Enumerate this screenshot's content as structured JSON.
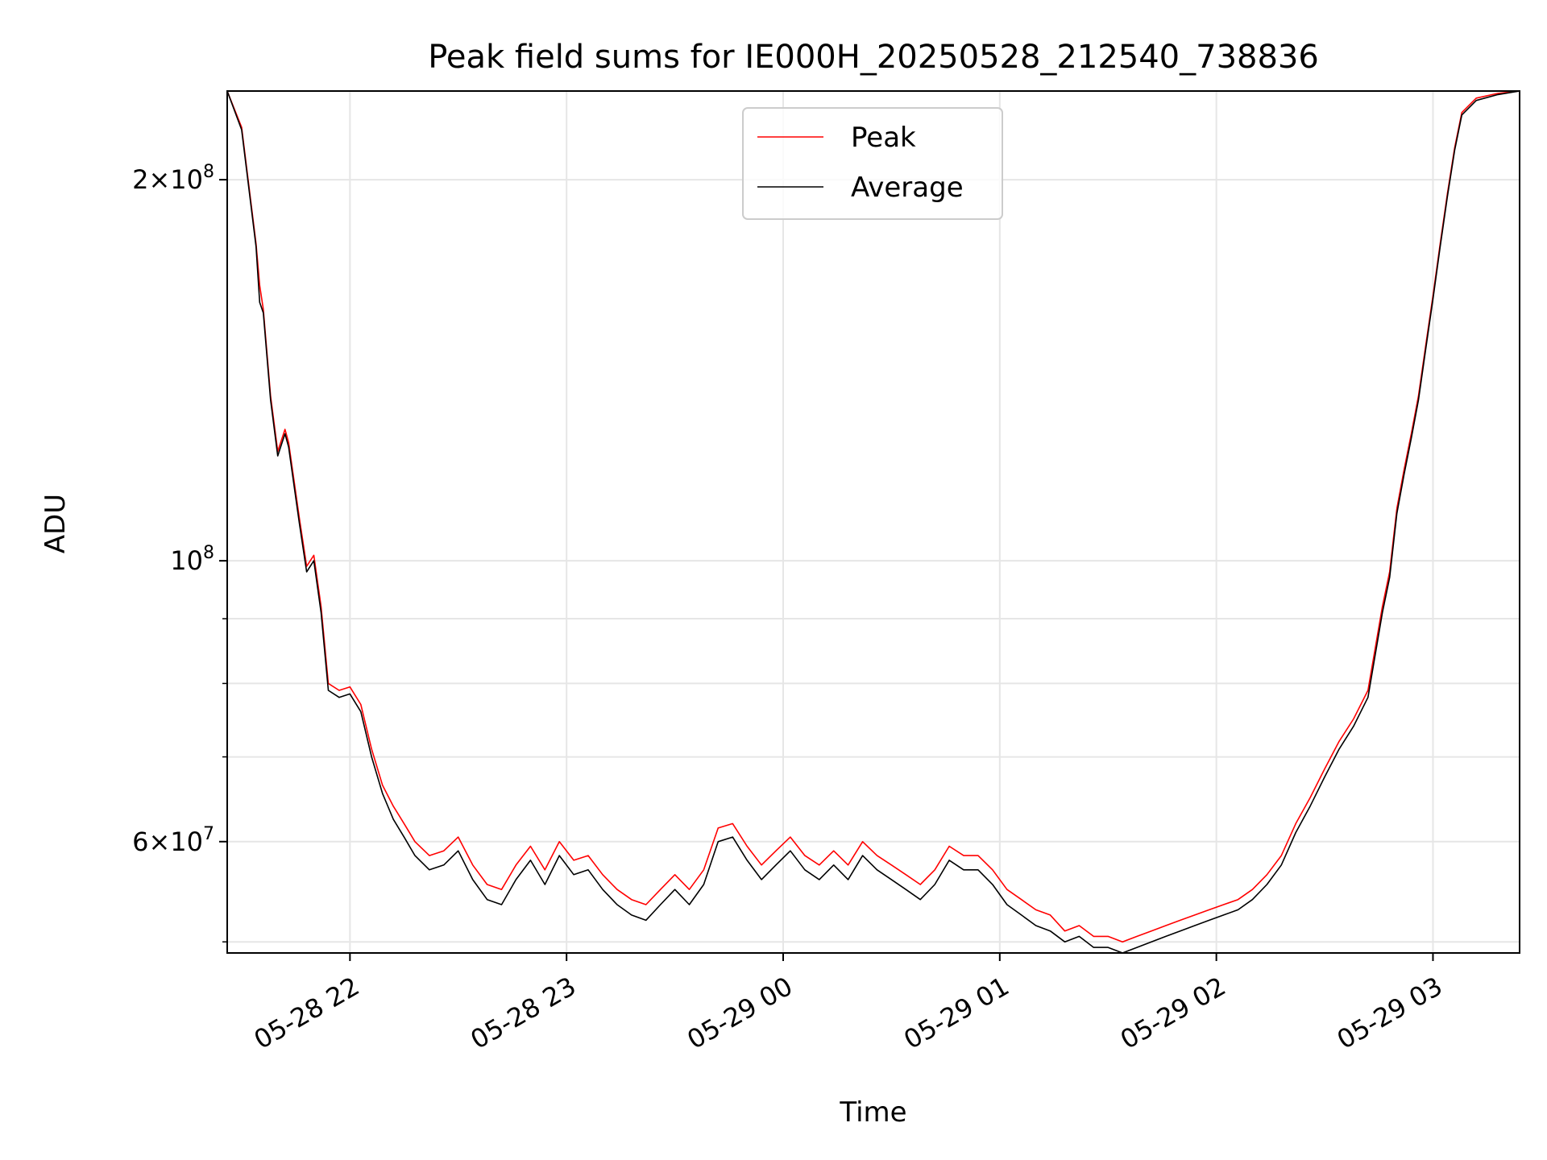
{
  "chart_data": {
    "type": "line",
    "title": "Peak field sums for IE000H_20250528_212540_738836",
    "xlabel": "Time",
    "ylabel": "ADU",
    "y_scale": "log",
    "grid": true,
    "legend_position": "top-center",
    "xlim": [
      "2025-05-28 21:26",
      "2025-05-29 03:24"
    ],
    "ylim": [
      49000000,
      235000000
    ],
    "x_ticks": [
      {
        "t": "2025-05-28 22:00",
        "label": "05-28 22"
      },
      {
        "t": "2025-05-28 23:00",
        "label": "05-28 23"
      },
      {
        "t": "2025-05-29 00:00",
        "label": "05-29 00"
      },
      {
        "t": "2025-05-29 01:00",
        "label": "05-29 01"
      },
      {
        "t": "2025-05-29 02:00",
        "label": "05-29 02"
      },
      {
        "t": "2025-05-29 03:00",
        "label": "05-29 03"
      }
    ],
    "y_ticks": [
      {
        "value": 60000000,
        "base": "6",
        "exp": "7"
      },
      {
        "value": 100000000,
        "base": "",
        "exp": "8"
      },
      {
        "value": 200000000,
        "base": "2",
        "exp": "8"
      }
    ],
    "y_minor_ticks": [
      50000000,
      70000000,
      80000000,
      90000000
    ],
    "series": [
      {
        "name": "Peak",
        "color": "#ff0000",
        "points": [
          [
            "2025-05-28 21:26",
            235000000
          ],
          [
            "2025-05-28 21:30",
            220000000
          ],
          [
            "2025-05-28 21:34",
            178000000
          ],
          [
            "2025-05-28 21:35",
            165000000
          ],
          [
            "2025-05-28 21:36",
            158000000
          ],
          [
            "2025-05-28 21:38",
            135000000
          ],
          [
            "2025-05-28 21:40",
            122000000
          ],
          [
            "2025-05-28 21:42",
            127000000
          ],
          [
            "2025-05-28 21:43",
            124000000
          ],
          [
            "2025-05-28 21:46",
            108000000
          ],
          [
            "2025-05-28 21:48",
            99000000
          ],
          [
            "2025-05-28 21:50",
            101000000
          ],
          [
            "2025-05-28 21:52",
            92000000
          ],
          [
            "2025-05-28 21:54",
            80000000
          ],
          [
            "2025-05-28 21:57",
            79000000
          ],
          [
            "2025-05-28 22:00",
            79500000
          ],
          [
            "2025-05-28 22:03",
            77000000
          ],
          [
            "2025-05-28 22:06",
            71000000
          ],
          [
            "2025-05-28 22:09",
            66500000
          ],
          [
            "2025-05-28 22:12",
            64000000
          ],
          [
            "2025-05-28 22:15",
            62000000
          ],
          [
            "2025-05-28 22:18",
            60000000
          ],
          [
            "2025-05-28 22:22",
            58500000
          ],
          [
            "2025-05-28 22:26",
            59000000
          ],
          [
            "2025-05-28 22:30",
            60500000
          ],
          [
            "2025-05-28 22:34",
            57500000
          ],
          [
            "2025-05-28 22:38",
            55500000
          ],
          [
            "2025-05-28 22:42",
            55000000
          ],
          [
            "2025-05-28 22:46",
            57500000
          ],
          [
            "2025-05-28 22:50",
            59500000
          ],
          [
            "2025-05-28 22:54",
            57000000
          ],
          [
            "2025-05-28 22:58",
            60000000
          ],
          [
            "2025-05-28 23:02",
            58000000
          ],
          [
            "2025-05-28 23:06",
            58500000
          ],
          [
            "2025-05-28 23:10",
            56500000
          ],
          [
            "2025-05-28 23:14",
            55000000
          ],
          [
            "2025-05-28 23:18",
            54000000
          ],
          [
            "2025-05-28 23:22",
            53500000
          ],
          [
            "2025-05-28 23:26",
            55000000
          ],
          [
            "2025-05-28 23:30",
            56500000
          ],
          [
            "2025-05-28 23:34",
            55000000
          ],
          [
            "2025-05-28 23:38",
            57000000
          ],
          [
            "2025-05-28 23:42",
            61500000
          ],
          [
            "2025-05-28 23:46",
            62000000
          ],
          [
            "2025-05-28 23:50",
            59500000
          ],
          [
            "2025-05-28 23:54",
            57500000
          ],
          [
            "2025-05-28 23:58",
            59000000
          ],
          [
            "2025-05-29 00:02",
            60500000
          ],
          [
            "2025-05-29 00:06",
            58500000
          ],
          [
            "2025-05-29 00:10",
            57500000
          ],
          [
            "2025-05-29 00:14",
            59000000
          ],
          [
            "2025-05-29 00:18",
            57500000
          ],
          [
            "2025-05-29 00:22",
            60000000
          ],
          [
            "2025-05-29 00:26",
            58500000
          ],
          [
            "2025-05-29 00:30",
            57500000
          ],
          [
            "2025-05-29 00:34",
            56500000
          ],
          [
            "2025-05-29 00:38",
            55500000
          ],
          [
            "2025-05-29 00:42",
            57000000
          ],
          [
            "2025-05-29 00:46",
            59500000
          ],
          [
            "2025-05-29 00:50",
            58500000
          ],
          [
            "2025-05-29 00:54",
            58500000
          ],
          [
            "2025-05-29 00:58",
            57000000
          ],
          [
            "2025-05-29 01:02",
            55000000
          ],
          [
            "2025-05-29 01:06",
            54000000
          ],
          [
            "2025-05-29 01:10",
            53000000
          ],
          [
            "2025-05-29 01:14",
            52500000
          ],
          [
            "2025-05-29 01:18",
            51000000
          ],
          [
            "2025-05-29 01:22",
            51500000
          ],
          [
            "2025-05-29 01:26",
            50500000
          ],
          [
            "2025-05-29 01:30",
            50500000
          ],
          [
            "2025-05-29 01:34",
            50000000
          ],
          [
            "2025-05-29 01:38",
            50500000
          ],
          [
            "2025-05-29 01:42",
            51000000
          ],
          [
            "2025-05-29 01:46",
            51500000
          ],
          [
            "2025-05-29 01:50",
            52000000
          ],
          [
            "2025-05-29 01:54",
            52500000
          ],
          [
            "2025-05-29 01:58",
            53000000
          ],
          [
            "2025-05-29 02:02",
            53500000
          ],
          [
            "2025-05-29 02:06",
            54000000
          ],
          [
            "2025-05-29 02:10",
            55000000
          ],
          [
            "2025-05-29 02:14",
            56500000
          ],
          [
            "2025-05-29 02:18",
            58500000
          ],
          [
            "2025-05-29 02:22",
            62000000
          ],
          [
            "2025-05-29 02:26",
            65000000
          ],
          [
            "2025-05-29 02:30",
            68500000
          ],
          [
            "2025-05-29 02:34",
            72000000
          ],
          [
            "2025-05-29 02:38",
            75000000
          ],
          [
            "2025-05-29 02:42",
            79000000
          ],
          [
            "2025-05-29 02:46",
            92000000
          ],
          [
            "2025-05-29 02:48",
            98000000
          ],
          [
            "2025-05-29 02:50",
            110000000
          ],
          [
            "2025-05-29 02:52",
            118000000
          ],
          [
            "2025-05-29 02:54",
            126000000
          ],
          [
            "2025-05-29 02:56",
            135000000
          ],
          [
            "2025-05-29 02:58",
            148000000
          ],
          [
            "2025-05-29 03:00",
            162000000
          ],
          [
            "2025-05-29 03:02",
            178000000
          ],
          [
            "2025-05-29 03:04",
            195000000
          ],
          [
            "2025-05-29 03:06",
            212000000
          ],
          [
            "2025-05-29 03:08",
            226000000
          ],
          [
            "2025-05-29 03:12",
            232000000
          ],
          [
            "2025-05-29 03:18",
            234000000
          ],
          [
            "2025-05-29 03:24",
            235000000
          ]
        ]
      },
      {
        "name": "Average",
        "color": "#000000",
        "points": [
          [
            "2025-05-28 21:26",
            235000000
          ],
          [
            "2025-05-28 21:30",
            219000000
          ],
          [
            "2025-05-28 21:34",
            177000000
          ],
          [
            "2025-05-28 21:35",
            160000000
          ],
          [
            "2025-05-28 21:36",
            157000000
          ],
          [
            "2025-05-28 21:38",
            134000000
          ],
          [
            "2025-05-28 21:40",
            121000000
          ],
          [
            "2025-05-28 21:42",
            126000000
          ],
          [
            "2025-05-28 21:43",
            123000000
          ],
          [
            "2025-05-28 21:46",
            107000000
          ],
          [
            "2025-05-28 21:48",
            98000000
          ],
          [
            "2025-05-28 21:50",
            100000000
          ],
          [
            "2025-05-28 21:52",
            91000000
          ],
          [
            "2025-05-28 21:54",
            79000000
          ],
          [
            "2025-05-28 21:57",
            78000000
          ],
          [
            "2025-05-28 22:00",
            78500000
          ],
          [
            "2025-05-28 22:03",
            76000000
          ],
          [
            "2025-05-28 22:06",
            70000000
          ],
          [
            "2025-05-28 22:09",
            65500000
          ],
          [
            "2025-05-28 22:12",
            62500000
          ],
          [
            "2025-05-28 22:15",
            60500000
          ],
          [
            "2025-05-28 22:18",
            58500000
          ],
          [
            "2025-05-28 22:22",
            57000000
          ],
          [
            "2025-05-28 22:26",
            57500000
          ],
          [
            "2025-05-28 22:30",
            59000000
          ],
          [
            "2025-05-28 22:34",
            56000000
          ],
          [
            "2025-05-28 22:38",
            54000000
          ],
          [
            "2025-05-28 22:42",
            53500000
          ],
          [
            "2025-05-28 22:46",
            56000000
          ],
          [
            "2025-05-28 22:50",
            58000000
          ],
          [
            "2025-05-28 22:54",
            55500000
          ],
          [
            "2025-05-28 22:58",
            58500000
          ],
          [
            "2025-05-28 23:02",
            56500000
          ],
          [
            "2025-05-28 23:06",
            57000000
          ],
          [
            "2025-05-28 23:10",
            55000000
          ],
          [
            "2025-05-28 23:14",
            53500000
          ],
          [
            "2025-05-28 23:18",
            52500000
          ],
          [
            "2025-05-28 23:22",
            52000000
          ],
          [
            "2025-05-28 23:26",
            53500000
          ],
          [
            "2025-05-28 23:30",
            55000000
          ],
          [
            "2025-05-28 23:34",
            53500000
          ],
          [
            "2025-05-28 23:38",
            55500000
          ],
          [
            "2025-05-28 23:42",
            60000000
          ],
          [
            "2025-05-28 23:46",
            60500000
          ],
          [
            "2025-05-28 23:50",
            58000000
          ],
          [
            "2025-05-28 23:54",
            56000000
          ],
          [
            "2025-05-28 23:58",
            57500000
          ],
          [
            "2025-05-29 00:02",
            59000000
          ],
          [
            "2025-05-29 00:06",
            57000000
          ],
          [
            "2025-05-29 00:10",
            56000000
          ],
          [
            "2025-05-29 00:14",
            57500000
          ],
          [
            "2025-05-29 00:18",
            56000000
          ],
          [
            "2025-05-29 00:22",
            58500000
          ],
          [
            "2025-05-29 00:26",
            57000000
          ],
          [
            "2025-05-29 00:30",
            56000000
          ],
          [
            "2025-05-29 00:34",
            55000000
          ],
          [
            "2025-05-29 00:38",
            54000000
          ],
          [
            "2025-05-29 00:42",
            55500000
          ],
          [
            "2025-05-29 00:46",
            58000000
          ],
          [
            "2025-05-29 00:50",
            57000000
          ],
          [
            "2025-05-29 00:54",
            57000000
          ],
          [
            "2025-05-29 00:58",
            55500000
          ],
          [
            "2025-05-29 01:02",
            53500000
          ],
          [
            "2025-05-29 01:06",
            52500000
          ],
          [
            "2025-05-29 01:10",
            51500000
          ],
          [
            "2025-05-29 01:14",
            51000000
          ],
          [
            "2025-05-29 01:18",
            50000000
          ],
          [
            "2025-05-29 01:22",
            50500000
          ],
          [
            "2025-05-29 01:26",
            49500000
          ],
          [
            "2025-05-29 01:30",
            49500000
          ],
          [
            "2025-05-29 01:34",
            49000000
          ],
          [
            "2025-05-29 01:38",
            49500000
          ],
          [
            "2025-05-29 01:42",
            50000000
          ],
          [
            "2025-05-29 01:46",
            50500000
          ],
          [
            "2025-05-29 01:50",
            51000000
          ],
          [
            "2025-05-29 01:54",
            51500000
          ],
          [
            "2025-05-29 01:58",
            52000000
          ],
          [
            "2025-05-29 02:02",
            52500000
          ],
          [
            "2025-05-29 02:06",
            53000000
          ],
          [
            "2025-05-29 02:10",
            54000000
          ],
          [
            "2025-05-29 02:14",
            55500000
          ],
          [
            "2025-05-29 02:18",
            57500000
          ],
          [
            "2025-05-29 02:22",
            61000000
          ],
          [
            "2025-05-29 02:26",
            64000000
          ],
          [
            "2025-05-29 02:30",
            67500000
          ],
          [
            "2025-05-29 02:34",
            71000000
          ],
          [
            "2025-05-29 02:38",
            74000000
          ],
          [
            "2025-05-29 02:42",
            78000000
          ],
          [
            "2025-05-29 02:46",
            91000000
          ],
          [
            "2025-05-29 02:48",
            97000000
          ],
          [
            "2025-05-29 02:50",
            109000000
          ],
          [
            "2025-05-29 02:52",
            117000000
          ],
          [
            "2025-05-29 02:54",
            125000000
          ],
          [
            "2025-05-29 02:56",
            134000000
          ],
          [
            "2025-05-29 02:58",
            147000000
          ],
          [
            "2025-05-29 03:00",
            161000000
          ],
          [
            "2025-05-29 03:02",
            177000000
          ],
          [
            "2025-05-29 03:04",
            194000000
          ],
          [
            "2025-05-29 03:06",
            211000000
          ],
          [
            "2025-05-29 03:08",
            225000000
          ],
          [
            "2025-05-29 03:12",
            231000000
          ],
          [
            "2025-05-29 03:18",
            233500000
          ],
          [
            "2025-05-29 03:24",
            235000000
          ]
        ]
      }
    ]
  }
}
